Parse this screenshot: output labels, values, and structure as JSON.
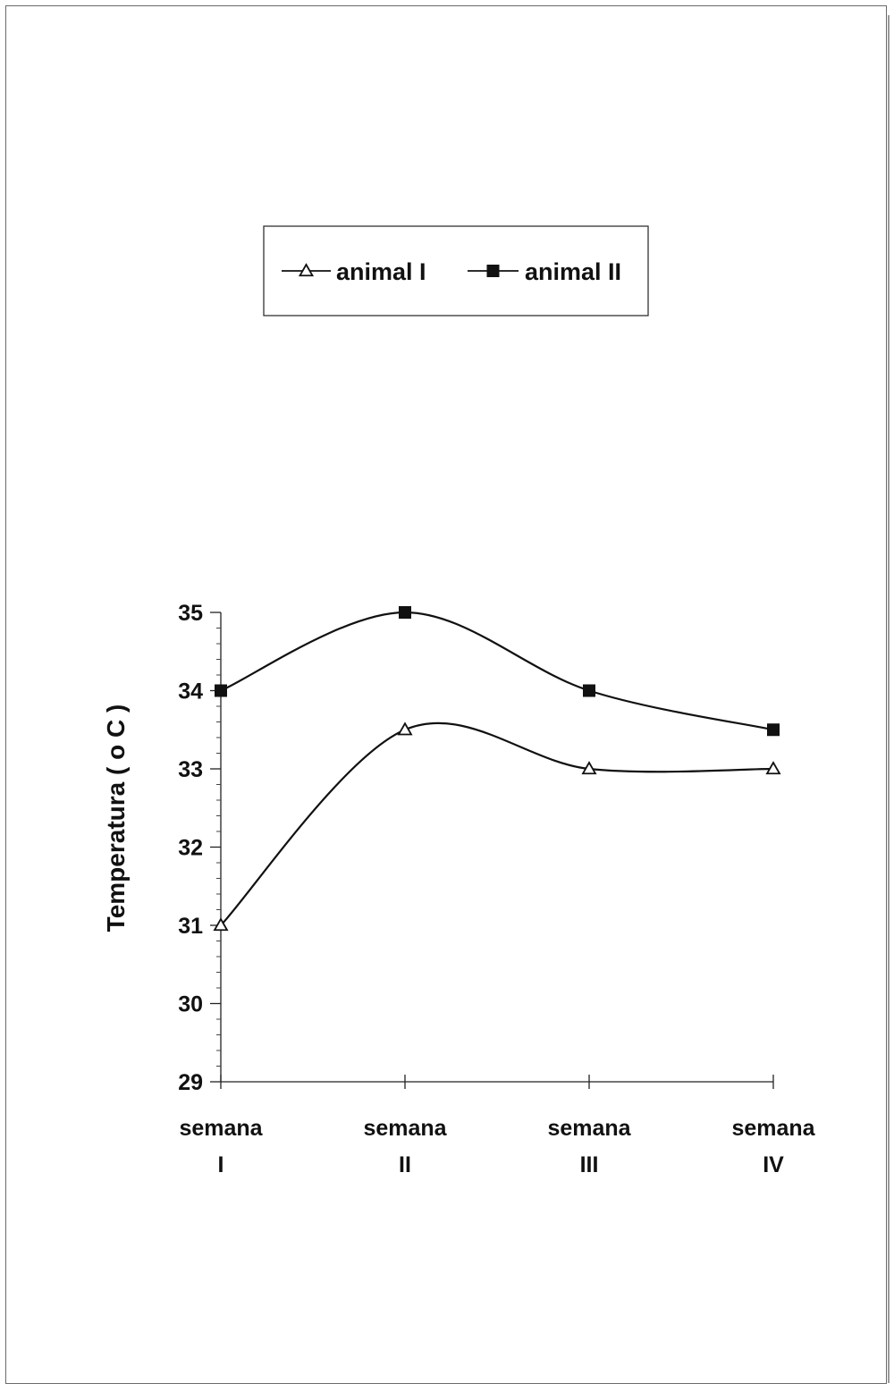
{
  "chart_data": {
    "type": "line",
    "smooth": true,
    "title": "",
    "ylabel": "Temperatura  ( o C )",
    "xlabel": "",
    "categories": [
      [
        "semana",
        "I"
      ],
      [
        "semana",
        "II"
      ],
      [
        "semana",
        "III"
      ],
      [
        "semana",
        "IV"
      ]
    ],
    "ylim": [
      29,
      35
    ],
    "yticks": [
      29,
      30,
      31,
      32,
      33,
      34,
      35
    ],
    "y_minor_step": 0.2,
    "grid": false,
    "legend": "top-center",
    "series": [
      {
        "name": "animal I",
        "marker": "triangle-open",
        "color": "#111111",
        "values": [
          31,
          33.5,
          33,
          33
        ]
      },
      {
        "name": "animal II",
        "marker": "square-filled",
        "color": "#111111",
        "values": [
          34,
          35,
          34,
          33.5
        ]
      }
    ]
  }
}
